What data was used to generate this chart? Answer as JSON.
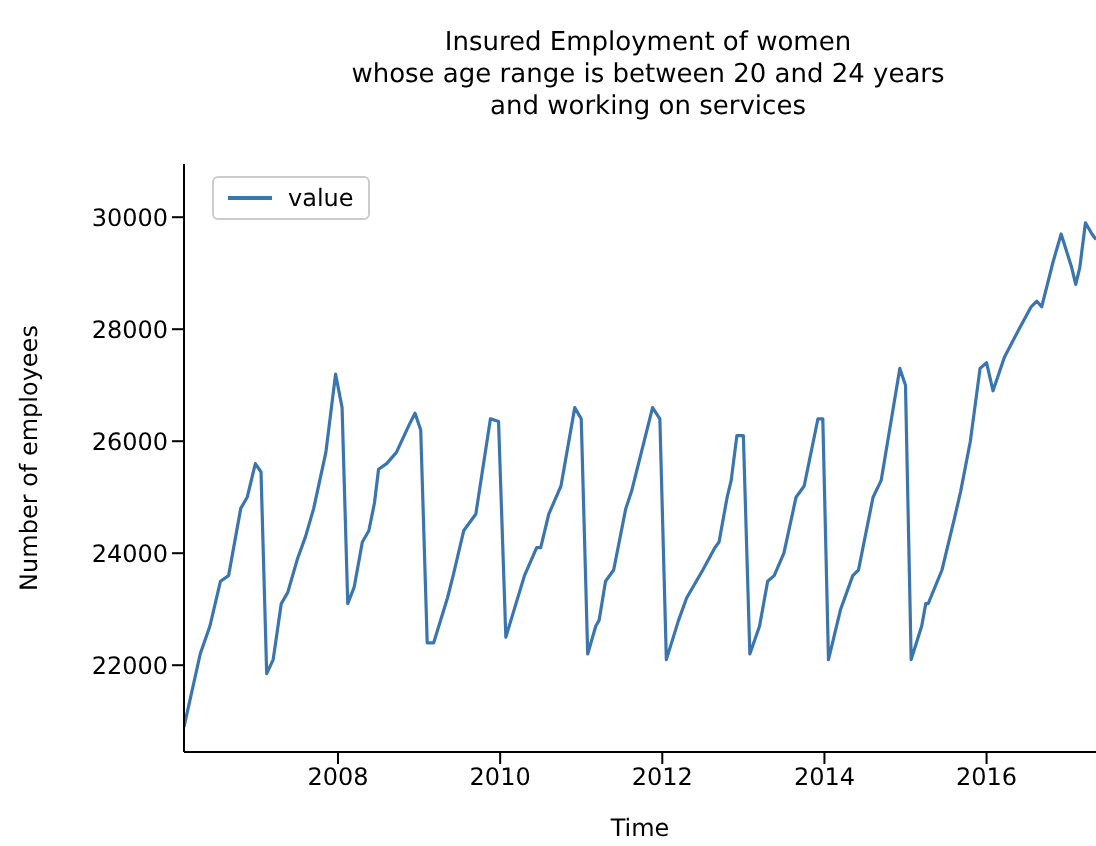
{
  "chart_data": {
    "type": "line",
    "title": "Insured Employment of women\nwhose age range is between 20 and 24 years\nand working on services",
    "xlabel": "Time",
    "ylabel": "Number of employees",
    "x": [
      2006.1,
      2006.3,
      2006.42,
      2006.55,
      2006.65,
      2006.8,
      2006.88,
      2006.98,
      2007.05,
      2007.12,
      2007.2,
      2007.3,
      2007.38,
      2007.5,
      2007.6,
      2007.7,
      2007.85,
      2007.97,
      2008.05,
      2008.12,
      2008.2,
      2008.3,
      2008.38,
      2008.45,
      2008.5,
      2008.6,
      2008.72,
      2008.88,
      2008.95,
      2009.02,
      2009.1,
      2009.18,
      2009.35,
      2009.42,
      2009.55,
      2009.7,
      2009.88,
      2009.98,
      2010.07,
      2010.3,
      2010.45,
      2010.5,
      2010.6,
      2010.75,
      2010.92,
      2011.0,
      2011.08,
      2011.18,
      2011.22,
      2011.3,
      2011.4,
      2011.55,
      2011.62,
      2011.88,
      2011.97,
      2012.05,
      2012.2,
      2012.3,
      2012.5,
      2012.65,
      2012.7,
      2012.8,
      2012.85,
      2012.92,
      2013.0,
      2013.08,
      2013.2,
      2013.3,
      2013.38,
      2013.5,
      2013.65,
      2013.75,
      2013.92,
      2013.98,
      2014.05,
      2014.2,
      2014.35,
      2014.42,
      2014.6,
      2014.7,
      2014.93,
      2015.0,
      2015.07,
      2015.2,
      2015.25,
      2015.28,
      2015.45,
      2015.6,
      2015.68,
      2015.8,
      2015.92,
      2016.0,
      2016.08,
      2016.22,
      2016.4,
      2016.55,
      2016.62,
      2016.68,
      2016.82,
      2016.92,
      2017.05,
      2017.1,
      2017.15,
      2017.22,
      2017.3,
      2017.35
    ],
    "series": [
      {
        "name": "value",
        "color": "#3b75af",
        "values": [
          20900,
          22200,
          22700,
          23500,
          23600,
          24800,
          25000,
          25600,
          25450,
          21850,
          22100,
          23100,
          23300,
          23900,
          24300,
          24800,
          25800,
          27200,
          26600,
          23100,
          23400,
          24200,
          24400,
          24900,
          25500,
          25600,
          25800,
          26300,
          26500,
          26200,
          22400,
          22400,
          23200,
          23600,
          24400,
          24700,
          26400,
          26350,
          22500,
          23600,
          24100,
          24100,
          24700,
          25200,
          26600,
          26400,
          22200,
          22700,
          22800,
          23500,
          23700,
          24800,
          25100,
          26600,
          26400,
          22100,
          22800,
          23200,
          23700,
          24100,
          24200,
          25000,
          25300,
          26100,
          26100,
          22200,
          22700,
          23500,
          23600,
          24000,
          25000,
          25200,
          26400,
          26400,
          22100,
          23000,
          23600,
          23700,
          25000,
          25300,
          27300,
          27000,
          22100,
          22700,
          23100,
          23100,
          23700,
          24600,
          25100,
          26000,
          27300,
          27400,
          26900,
          27500,
          28000,
          28400,
          28500,
          28400,
          29200,
          29700,
          29100,
          28800,
          29100,
          29900,
          29700,
          29600
        ]
      }
    ],
    "xlim": [
      2006.1,
      2017.35
    ],
    "xticks": [
      2008,
      2010,
      2012,
      2014,
      2016
    ],
    "ylim": [
      20450,
      30950
    ],
    "yticks": [
      22000,
      24000,
      26000,
      28000,
      30000
    ],
    "legend": "top left",
    "grid": false
  }
}
